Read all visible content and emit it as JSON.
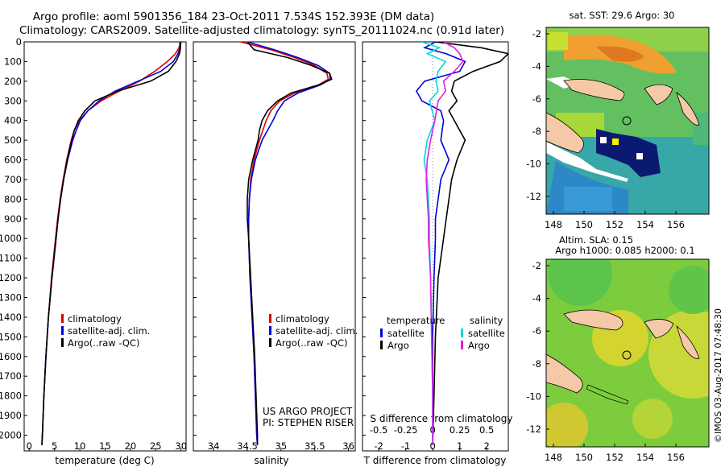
{
  "titles": {
    "line1": "Argo profile: aoml 5901356_184 23-Oct-2011 7.534S 152.393E (DM data)",
    "line2": "Climatology: CARS2009. Satellite-adjusted climatology: synTS_20111024.nc (0.91d later)"
  },
  "colors": {
    "climatology": "#e00000",
    "satellite": "#0000dd",
    "argo": "#000000",
    "s_satellite": "#00d8e0",
    "s_argo": "#e020e0"
  },
  "chart_data": [
    {
      "id": "temperature",
      "type": "line",
      "xlabel": "temperature (deg C)",
      "ylabel": "",
      "xlim": [
        -1,
        31
      ],
      "ylim": [
        2080,
        0
      ],
      "xticks": [
        "0",
        "5",
        "10",
        "15",
        "20",
        "25",
        "30"
      ],
      "xtick_values": [
        0,
        5,
        10,
        15,
        20,
        25,
        30
      ],
      "yticks": [
        "0",
        "100",
        "200",
        "300",
        "400",
        "500",
        "600",
        "700",
        "800",
        "900",
        "1000",
        "1100",
        "1200",
        "1300",
        "1400",
        "1500",
        "1600",
        "1700",
        "1800",
        "1900",
        "2000"
      ],
      "legend": [
        "climatology",
        "satellite-adj. clim.",
        "Argo(..raw -QC)"
      ],
      "series": [
        {
          "name": "climatology",
          "depth": [
            0,
            30,
            60,
            100,
            150,
            200,
            250,
            300,
            350,
            400,
            450,
            500,
            600,
            700,
            800,
            900,
            1000,
            1200,
            1400,
            1600,
            1800,
            2000,
            2050
          ],
          "values": [
            29.8,
            29.6,
            28.9,
            27.3,
            24.8,
            21.8,
            17.8,
            14.2,
            11.6,
            9.9,
            8.9,
            8.3,
            7.4,
            6.7,
            6.1,
            5.6,
            5.2,
            4.4,
            3.8,
            3.3,
            2.9,
            2.6,
            2.5
          ]
        },
        {
          "name": "satellite-adj. clim.",
          "depth": [
            0,
            30,
            60,
            100,
            150,
            200,
            250,
            300,
            350,
            400,
            450,
            500,
            600,
            700,
            800,
            900,
            1000,
            1200,
            1400,
            1600,
            1800,
            2000,
            2050
          ],
          "values": [
            30.0,
            29.8,
            29.4,
            28.5,
            26.0,
            21.5,
            17.0,
            13.8,
            11.6,
            10.1,
            9.3,
            8.6,
            7.6,
            6.8,
            6.2,
            5.7,
            5.3,
            4.5,
            3.8,
            3.3,
            2.9,
            2.6,
            2.5
          ]
        },
        {
          "name": "Argo(..raw -QC)",
          "depth": [
            0,
            30,
            60,
            100,
            150,
            200,
            250,
            300,
            350,
            400,
            450,
            500,
            600,
            700,
            800,
            900,
            1000,
            1200,
            1400,
            1600,
            1800,
            2000,
            2050
          ],
          "values": [
            29.9,
            29.9,
            29.7,
            29.0,
            27.5,
            24.0,
            17.5,
            13.0,
            11.0,
            9.7,
            8.9,
            8.4,
            7.5,
            6.8,
            6.2,
            5.7,
            5.3,
            4.5,
            3.8,
            3.3,
            2.9,
            2.6,
            2.5
          ]
        }
      ]
    },
    {
      "id": "salinity",
      "type": "line",
      "xlabel": "salinity",
      "xlim": [
        33.7,
        36.1
      ],
      "ylim": [
        2080,
        0
      ],
      "xticks": [
        "34",
        "34.5",
        "35",
        "35.5",
        "36"
      ],
      "xtick_values": [
        34,
        34.5,
        35,
        35.5,
        36
      ],
      "legend": [
        "climatology",
        "satellite-adj. clim.",
        "Argo(..raw -QC)"
      ],
      "annotation": [
        "US ARGO PROJECT",
        "PI: STEPHEN RISER"
      ],
      "series": [
        {
          "name": "climatology",
          "depth": [
            0,
            40,
            80,
            120,
            160,
            190,
            220,
            260,
            300,
            350,
            400,
            500,
            600,
            700,
            800,
            900,
            1000,
            1200,
            1400,
            1600,
            1800,
            2000,
            2050
          ],
          "values": [
            34.4,
            34.85,
            35.2,
            35.5,
            35.68,
            35.7,
            35.55,
            35.2,
            34.98,
            34.85,
            34.78,
            34.68,
            34.6,
            34.55,
            34.53,
            34.52,
            34.52,
            34.54,
            34.57,
            34.6,
            34.62,
            34.64,
            34.65
          ]
        },
        {
          "name": "satellite-adj. clim.",
          "depth": [
            0,
            40,
            80,
            120,
            160,
            190,
            220,
            260,
            300,
            350,
            400,
            500,
            600,
            700,
            800,
            900,
            1000,
            1200,
            1400,
            1600,
            1800,
            2000,
            2050
          ],
          "values": [
            34.5,
            34.9,
            35.25,
            35.55,
            35.72,
            35.73,
            35.58,
            35.25,
            35.05,
            34.95,
            34.88,
            34.72,
            34.62,
            34.56,
            34.53,
            34.52,
            34.52,
            34.54,
            34.57,
            34.6,
            34.62,
            34.64,
            34.65
          ]
        },
        {
          "name": "Argo(..raw -QC)",
          "depth": [
            0,
            40,
            80,
            120,
            160,
            190,
            220,
            260,
            300,
            350,
            400,
            450,
            500,
            600,
            700,
            800,
            900,
            1000,
            1200,
            1400,
            1600,
            1800,
            2000,
            2050
          ],
          "values": [
            34.5,
            34.6,
            35.1,
            35.45,
            35.72,
            35.75,
            35.55,
            35.15,
            34.95,
            34.8,
            34.72,
            34.68,
            34.66,
            34.58,
            34.52,
            34.5,
            34.5,
            34.52,
            34.55,
            34.58,
            34.61,
            34.63,
            34.65,
            34.65
          ]
        }
      ]
    },
    {
      "id": "differences",
      "type": "line",
      "xlabel": "T difference from climatology",
      "xlabel_top": "S difference from climatology",
      "xlim": [
        -2.6,
        2.8
      ],
      "ylim": [
        2080,
        0
      ],
      "xticks": [
        "-2",
        "-1",
        "0",
        "1",
        "2"
      ],
      "xtick_values": [
        -2,
        -1,
        0,
        1,
        2
      ],
      "sticks": [
        "-0.5",
        "-0.25",
        "0",
        "0.25",
        "0.5"
      ],
      "stick_values": [
        -0.5,
        -0.25,
        0,
        0.25,
        0.5
      ],
      "legend_temperature": {
        "title": "temperature",
        "items": [
          "satellite",
          "Argo"
        ]
      },
      "legend_salinity": {
        "title": "salinity",
        "items": [
          "satellite",
          "Argo"
        ]
      },
      "series": [
        {
          "name": "T satellite",
          "depth": [
            0,
            30,
            60,
            100,
            150,
            200,
            250,
            300,
            350,
            400,
            500,
            600,
            700,
            800,
            900,
            1000,
            1200,
            1500,
            1800,
            2050
          ],
          "values": [
            0.1,
            -0.3,
            0.5,
            1.2,
            1.0,
            -0.3,
            -0.6,
            -0.4,
            0.3,
            0.4,
            0.3,
            0.6,
            0.3,
            0.2,
            0.1,
            0.1,
            0.05,
            0.0,
            0.0,
            0.0
          ]
        },
        {
          "name": "T Argo",
          "depth": [
            0,
            30,
            60,
            100,
            150,
            200,
            250,
            300,
            350,
            400,
            500,
            600,
            700,
            800,
            900,
            1000,
            1200,
            1500,
            1800,
            2050
          ],
          "values": [
            0.1,
            1.8,
            2.8,
            2.5,
            1.5,
            0.8,
            0.7,
            0.9,
            0.6,
            0.8,
            1.2,
            0.9,
            0.7,
            0.6,
            0.5,
            0.4,
            0.2,
            0.1,
            0.05,
            0.0
          ]
        },
        {
          "name": "S satellite",
          "depth": [
            0,
            30,
            60,
            100,
            150,
            200,
            250,
            300,
            400,
            500,
            600,
            700,
            800,
            900,
            1000,
            1200,
            1500,
            1800,
            2050
          ],
          "values": [
            -0.1,
            0.06,
            -0.05,
            0.12,
            0.05,
            0.03,
            0.05,
            -0.03,
            0.02,
            -0.05,
            -0.08,
            -0.05,
            -0.04,
            -0.03,
            -0.03,
            -0.02,
            -0.01,
            0.0,
            0.0
          ]
        },
        {
          "name": "S Argo",
          "depth": [
            0,
            30,
            60,
            100,
            150,
            200,
            250,
            300,
            400,
            500,
            600,
            700,
            800,
            900,
            1000,
            1200,
            1500,
            1800,
            2050
          ],
          "values": [
            0.1,
            0.2,
            0.25,
            0.28,
            0.2,
            0.1,
            0.12,
            0.05,
            0.02,
            -0.02,
            -0.05,
            -0.06,
            -0.05,
            -0.04,
            -0.04,
            -0.02,
            -0.01,
            0.0,
            0.0
          ]
        }
      ]
    }
  ],
  "maps": {
    "top": {
      "title": "sat. SST: 29.6 Argo: 30",
      "yticks": [
        "-2",
        "-4",
        "-6",
        "-8",
        "-10",
        "-12"
      ],
      "xticks": [
        "148",
        "150",
        "152",
        "154",
        "156"
      ]
    },
    "bottom": {
      "title1": "Altim. SLA: 0.15",
      "title2": "Argo h1000: 0.085 h2000: 0.1",
      "yticks": [
        "-2",
        "-4",
        "-6",
        "-8",
        "-10",
        "-12"
      ],
      "xticks": [
        "148",
        "150",
        "152",
        "154",
        "156"
      ]
    }
  },
  "footer": "©IMOS 03-Aug-2017 07:48:30"
}
